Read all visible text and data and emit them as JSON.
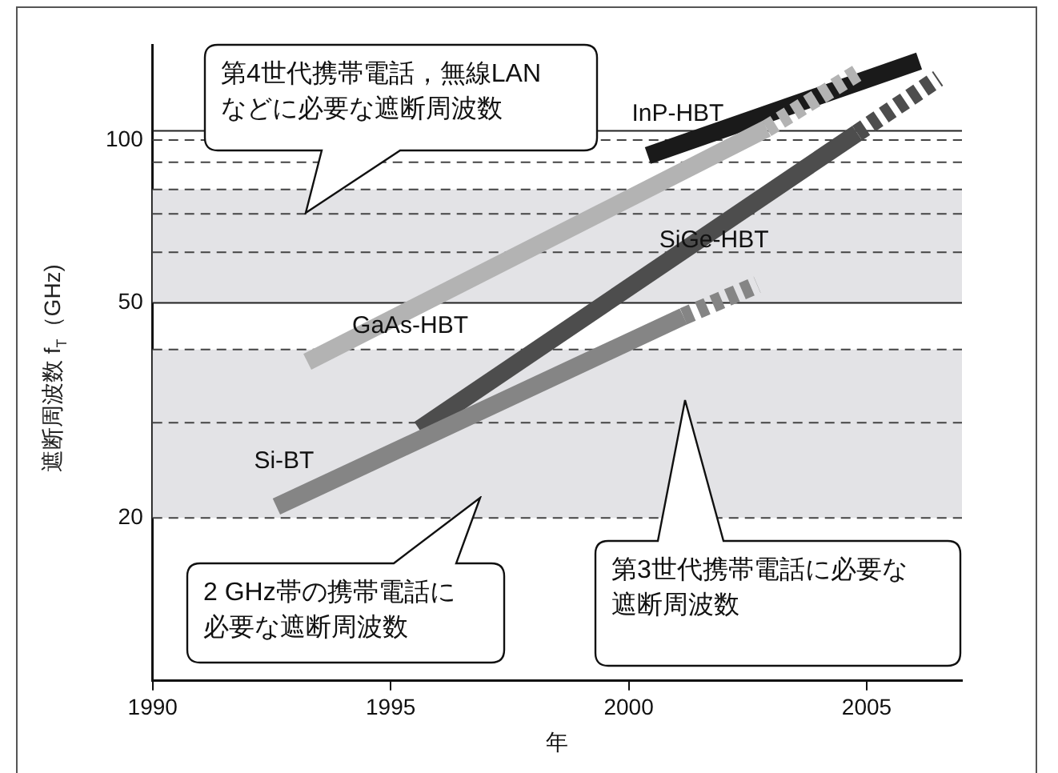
{
  "chart_data": {
    "type": "line",
    "xlabel": "年",
    "ylabel": "遮断周波数 f$_{T}$（GHz)",
    "xlim": [
      1990,
      2007
    ],
    "xticks": [
      1990,
      1995,
      2000,
      2005
    ],
    "ylim": [
      10,
      150
    ],
    "yticks": [
      20,
      50,
      100
    ],
    "log": "y",
    "grid": false,
    "legend": false,
    "marker": "none",
    "series": [
      {
        "name": "GaAs-HBT",
        "color": "#b3b3b3",
        "x": [
          1993.25,
          2002.9
        ],
        "values": [
          38.9,
          105
        ]
      },
      {
        "color": "#b3b3b3",
        "x": [
          2002.9,
          2004.8
        ],
        "values": [
          105,
          133
        ],
        "line_style": "dashed"
      },
      {
        "name": "Si-BT",
        "color": "#858585",
        "x": [
          1992.6,
          2001.15
        ],
        "values": [
          21,
          47.2
        ]
      },
      {
        "color": "#858585",
        "x": [
          2001.15,
          2002.7
        ],
        "values": [
          47.2,
          54
        ],
        "line_style": "dashed"
      },
      {
        "name": "SiGe-HBT",
        "color": "#4d4d4d",
        "x": [
          1995.6,
          2004.8
        ],
        "values": [
          29.2,
          103
        ]
      },
      {
        "color": "#4d4d4d",
        "x": [
          2004.8,
          2006.5
        ],
        "values": [
          103,
          130
        ],
        "line_style": "dashed"
      },
      {
        "name": "InP-HBT",
        "color": "#1a1a1a",
        "x": [
          2000.4,
          2006.1
        ],
        "values": [
          93.6,
          140
        ]
      }
    ],
    "bands": [
      {
        "axis": "y",
        "from": 50,
        "to": 81,
        "color": "#e3e3e6"
      },
      {
        "axis": "y",
        "from": 20,
        "to": 41,
        "color": "#e3e3e6"
      }
    ],
    "ref_lines": [
      {
        "axis": "y",
        "value": 104,
        "color": "#222222",
        "line_style": "solid"
      },
      {
        "axis": "y",
        "value": 100,
        "color": "#444444",
        "line_style": "dashed"
      },
      {
        "axis": "y",
        "value": 91,
        "color": "#444444",
        "line_style": "dashed"
      },
      {
        "axis": "y",
        "value": 81,
        "color": "#444444",
        "line_style": "dashed"
      },
      {
        "axis": "y",
        "value": 73,
        "color": "#444444",
        "line_style": "dashed"
      },
      {
        "axis": "y",
        "value": 62,
        "color": "#444444",
        "line_style": "dashed"
      },
      {
        "axis": "y",
        "value": 50,
        "color": "#222222",
        "line_style": "solid"
      },
      {
        "axis": "y",
        "value": 41,
        "color": "#444444",
        "line_style": "dashed"
      },
      {
        "axis": "y",
        "value": 30,
        "color": "#444444",
        "line_style": "dashed"
      },
      {
        "axis": "y",
        "value": 20,
        "color": "#444444",
        "line_style": "dashed"
      }
    ],
    "annotations": [
      "第4世代携帯電話，無線LANなどに必要な遮断周波数",
      "2 GHz帯の携帯電話に必要な遮断周波数",
      "第3世代携帯電話に必要な遮断周波数"
    ]
  }
}
